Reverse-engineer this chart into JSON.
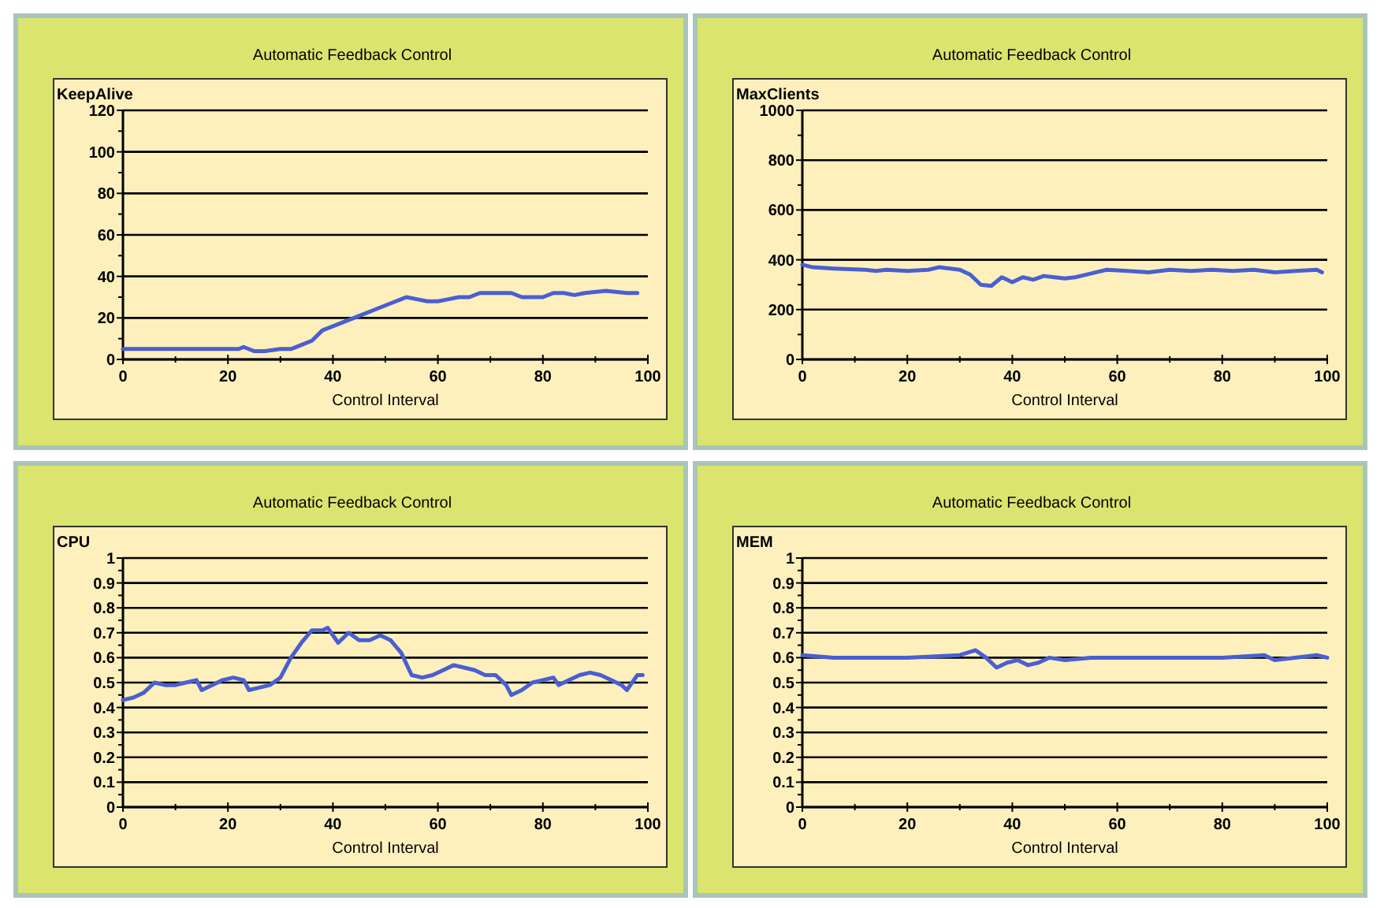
{
  "chart_data": [
    {
      "type": "line",
      "title": "Automatic Feedback Control",
      "xlabel": "Control Interval",
      "ylabel": "KeepAlive",
      "xlim": [
        0,
        100
      ],
      "xticks": [
        0,
        20,
        40,
        60,
        80,
        100
      ],
      "ylim": [
        0,
        120
      ],
      "yticks": [
        0,
        20,
        40,
        60,
        80,
        100,
        120
      ],
      "grid": "y",
      "marker": "none",
      "line_style": "solid",
      "series": [
        {
          "color": "#4a5fd0",
          "x": [
            0,
            5,
            10,
            15,
            20,
            22,
            23,
            25,
            27,
            30,
            32,
            34,
            36,
            38,
            40,
            42,
            44,
            46,
            48,
            50,
            52,
            54,
            56,
            58,
            60,
            62,
            64,
            66,
            68,
            70,
            74,
            76,
            80,
            82,
            84,
            86,
            88,
            92,
            96,
            98
          ],
          "values": [
            5,
            5,
            5,
            5,
            5,
            5,
            6,
            4,
            4,
            5,
            5,
            7,
            9,
            14,
            16,
            18,
            20,
            22,
            24,
            26,
            28,
            30,
            29,
            28,
            28,
            29,
            30,
            30,
            32,
            32,
            32,
            30,
            30,
            32,
            32,
            31,
            32,
            33,
            32,
            32
          ]
        }
      ]
    },
    {
      "type": "line",
      "title": "Automatic Feedback Control",
      "xlabel": "Control Interval",
      "ylabel": "MaxClients",
      "xlim": [
        0,
        100
      ],
      "xticks": [
        0,
        20,
        40,
        60,
        80,
        100
      ],
      "ylim": [
        0,
        1000
      ],
      "yticks": [
        0,
        200,
        400,
        600,
        800,
        1000
      ],
      "grid": "y",
      "marker": "none",
      "line_style": "solid",
      "series": [
        {
          "color": "#4a5fd0",
          "x": [
            0,
            2,
            6,
            12,
            14,
            16,
            20,
            24,
            26,
            30,
            32,
            34,
            36,
            38,
            40,
            42,
            44,
            46,
            48,
            50,
            52,
            54,
            56,
            58,
            62,
            66,
            70,
            74,
            78,
            82,
            86,
            90,
            94,
            98,
            99
          ],
          "values": [
            380,
            370,
            365,
            360,
            355,
            360,
            355,
            360,
            370,
            360,
            340,
            300,
            295,
            330,
            310,
            330,
            320,
            335,
            330,
            325,
            330,
            340,
            350,
            360,
            355,
            350,
            360,
            355,
            360,
            355,
            360,
            350,
            355,
            360,
            350
          ]
        }
      ]
    },
    {
      "type": "line",
      "title": "Automatic Feedback Control",
      "xlabel": "Control Interval",
      "ylabel": "CPU",
      "xlim": [
        0,
        100
      ],
      "xticks": [
        0,
        20,
        40,
        60,
        80,
        100
      ],
      "ylim": [
        0,
        1
      ],
      "yticks": [
        0,
        0.1,
        0.2,
        0.3,
        0.4,
        0.5,
        0.6,
        0.7,
        0.8,
        0.9,
        1
      ],
      "grid": "y",
      "marker": "none",
      "line_style": "solid",
      "series": [
        {
          "color": "#4a5fd0",
          "x": [
            0,
            2,
            4,
            6,
            8,
            10,
            12,
            14,
            15,
            17,
            19,
            21,
            23,
            24,
            26,
            28,
            30,
            32,
            34,
            36,
            38,
            39,
            41,
            43,
            45,
            47,
            49,
            51,
            53,
            55,
            57,
            59,
            61,
            63,
            65,
            67,
            69,
            71,
            73,
            74,
            76,
            78,
            80,
            82,
            83,
            85,
            87,
            89,
            91,
            93,
            95,
            96,
            98,
            99
          ],
          "values": [
            0.43,
            0.44,
            0.46,
            0.5,
            0.49,
            0.49,
            0.5,
            0.51,
            0.47,
            0.49,
            0.51,
            0.52,
            0.51,
            0.47,
            0.48,
            0.49,
            0.52,
            0.6,
            0.66,
            0.71,
            0.71,
            0.72,
            0.66,
            0.7,
            0.67,
            0.67,
            0.69,
            0.67,
            0.62,
            0.53,
            0.52,
            0.53,
            0.55,
            0.57,
            0.56,
            0.55,
            0.53,
            0.53,
            0.49,
            0.45,
            0.47,
            0.5,
            0.51,
            0.52,
            0.49,
            0.51,
            0.53,
            0.54,
            0.53,
            0.51,
            0.49,
            0.47,
            0.53,
            0.53
          ]
        }
      ]
    },
    {
      "type": "line",
      "title": "Automatic Feedback Control",
      "xlabel": "Control Interval",
      "ylabel": "MEM",
      "xlim": [
        0,
        100
      ],
      "xticks": [
        0,
        20,
        40,
        60,
        80,
        100
      ],
      "ylim": [
        0,
        1
      ],
      "yticks": [
        0,
        0.1,
        0.2,
        0.3,
        0.4,
        0.5,
        0.6,
        0.7,
        0.8,
        0.9,
        1
      ],
      "grid": "y",
      "marker": "none",
      "line_style": "solid",
      "series": [
        {
          "color": "#4a5fd0",
          "x": [
            0,
            6,
            20,
            30,
            33,
            35,
            37,
            39,
            41,
            43,
            45,
            47,
            50,
            55,
            70,
            80,
            88,
            90,
            98,
            100
          ],
          "values": [
            0.61,
            0.6,
            0.6,
            0.61,
            0.63,
            0.6,
            0.56,
            0.58,
            0.59,
            0.57,
            0.58,
            0.6,
            0.59,
            0.6,
            0.6,
            0.6,
            0.61,
            0.59,
            0.61,
            0.6
          ]
        }
      ]
    }
  ]
}
